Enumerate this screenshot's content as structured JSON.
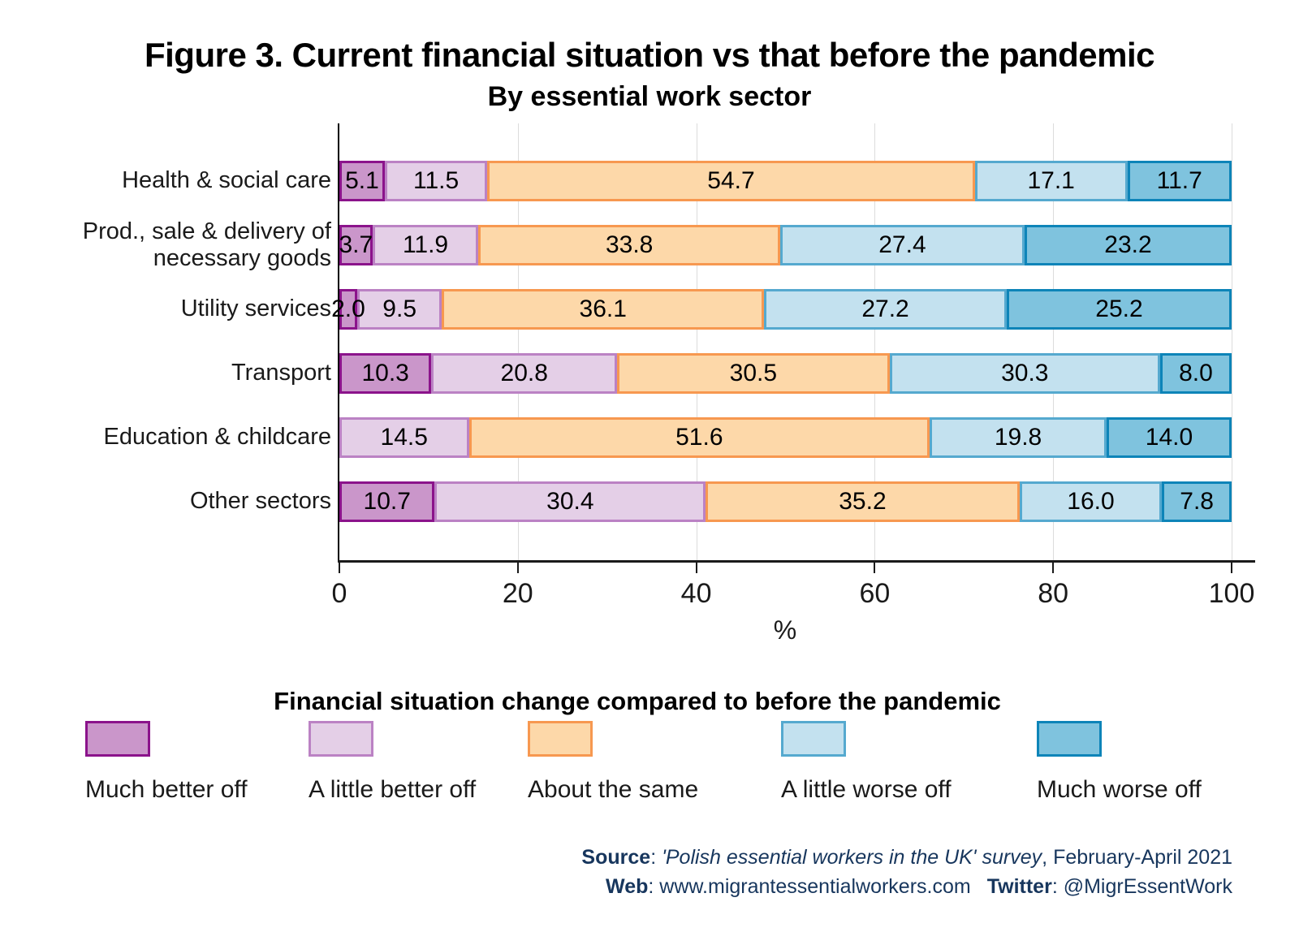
{
  "chart_data": {
    "type": "bar",
    "orientation": "horizontal-stacked",
    "title": "Figure 3. Current financial situation vs that before the pandemic",
    "subtitle": "By essential work sector",
    "xlabel": "%",
    "xlim": [
      0,
      100
    ],
    "xticks": [
      0,
      20,
      40,
      60,
      80,
      100
    ],
    "grid": "vertical-light-gray",
    "legend_title": "Financial situation change compared to before the pandemic",
    "legend_position": "bottom",
    "categories": [
      "Health & social care",
      "Prod., sale & delivery of necessary goods",
      "Utility services",
      "Transport",
      "Education & childcare",
      "Other sectors"
    ],
    "series": [
      {
        "name": "Much better off",
        "fill": "#ca96ca",
        "border": "#8b138b",
        "values": [
          5.1,
          3.7,
          2.0,
          10.3,
          0,
          10.7
        ]
      },
      {
        "name": "A little better off",
        "fill": "#e4cfe7",
        "border": "#bb82c4",
        "values": [
          11.5,
          11.9,
          9.5,
          20.8,
          14.5,
          30.4
        ]
      },
      {
        "name": "About the same",
        "fill": "#fdd8a9",
        "border": "#f79850",
        "values": [
          54.7,
          33.8,
          36.1,
          30.5,
          51.6,
          35.2
        ]
      },
      {
        "name": "A little worse off",
        "fill": "#c3e1ef",
        "border": "#55a9cf",
        "values": [
          17.1,
          27.4,
          27.2,
          30.3,
          19.8,
          16.0
        ]
      },
      {
        "name": "Much worse off",
        "fill": "#7fc3de",
        "border": "#0d84b8",
        "values": [
          11.7,
          23.2,
          25.2,
          8.0,
          14.0,
          7.8
        ]
      }
    ]
  },
  "source": {
    "source_label": "Source",
    "source_sep": ": ",
    "source_italic": "'Polish essential workers in the UK' survey",
    "source_rest": ", February-April 2021",
    "web_label": "Web",
    "web_value": ": www.migrantessentialworkers.com",
    "twitter_label": "Twitter",
    "twitter_value": ": @MigrEssentWork"
  }
}
